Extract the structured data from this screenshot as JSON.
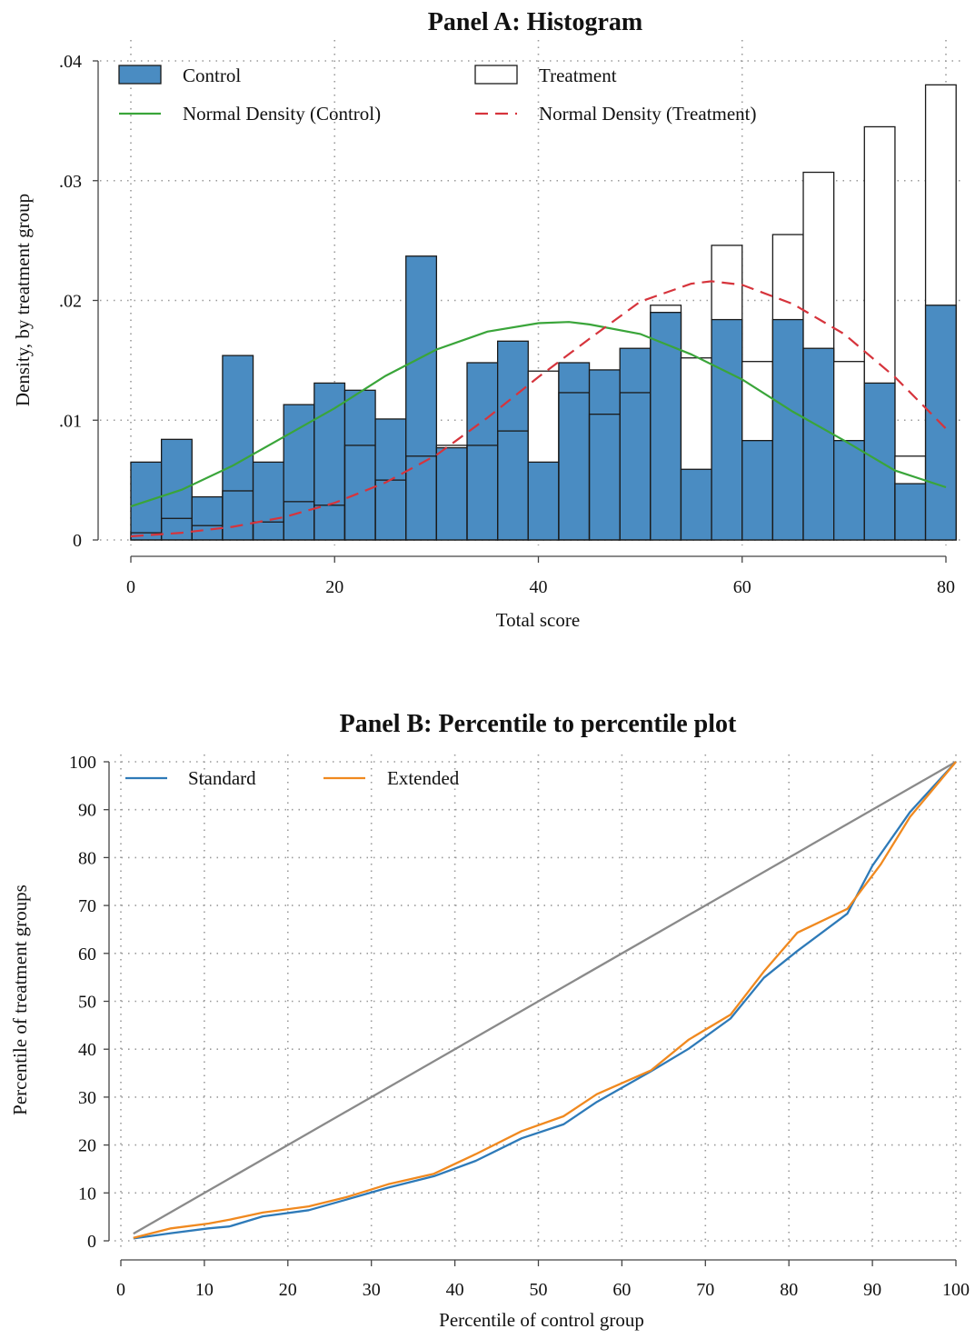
{
  "chart_data": [
    {
      "type": "bar",
      "title": "Panel A: Histogram",
      "xlabel": "Total score",
      "ylabel": "Density, by treatment group",
      "xlim": [
        0,
        81
      ],
      "ylim": [
        0,
        0.04
      ],
      "xticks": [
        0,
        20,
        40,
        60,
        80
      ],
      "xtick_labels": [
        "0",
        "20",
        "40",
        "60",
        "80"
      ],
      "yticks": [
        0,
        0.01,
        0.02,
        0.03,
        0.04
      ],
      "ytick_labels": [
        "0",
        ".01",
        ".02",
        ".03",
        ".04"
      ],
      "grid": true,
      "legend_position": "top",
      "bin_width": 3,
      "bin_starts": [
        0,
        3,
        6,
        9,
        12,
        15,
        18,
        21,
        24,
        27,
        30,
        33,
        36,
        39,
        42,
        45,
        48,
        51,
        54,
        57,
        60,
        63,
        66,
        69,
        72,
        75,
        78
      ],
      "series": [
        {
          "name": "Control",
          "kind": "histogram",
          "color": "#4a8cc2",
          "values": [
            0.0065,
            0.0084,
            0.0036,
            0.0154,
            0.0065,
            0.0113,
            0.0131,
            0.0125,
            0.0101,
            0.0237,
            0.0077,
            0.0148,
            0.0166,
            0.0065,
            0.0148,
            0.0142,
            0.016,
            0.019,
            0.0059,
            0.0184,
            0.0083,
            0.0184,
            0.016,
            0.0083,
            0.0131,
            0.0047,
            0.0196
          ]
        },
        {
          "name": "Treatment",
          "kind": "histogram",
          "color": "#ffffff",
          "values": [
            0.0006,
            0.0018,
            0.0012,
            0.0041,
            0.0015,
            0.0032,
            0.0029,
            0.0079,
            0.005,
            0.007,
            0.0079,
            0.0079,
            0.0091,
            0.0141,
            0.0123,
            0.0105,
            0.0123,
            0.0196,
            0.0152,
            0.0246,
            0.0149,
            0.0255,
            0.0307,
            0.0149,
            0.0345,
            0.007,
            0.038
          ]
        },
        {
          "name": "Normal Density (Control)",
          "kind": "line",
          "color": "#3aa53a",
          "x": [
            0,
            5,
            10,
            15,
            20,
            25,
            30,
            35,
            40,
            43,
            45,
            50,
            55,
            60,
            65,
            70,
            75,
            80
          ],
          "values": [
            0.0028,
            0.0042,
            0.0062,
            0.0086,
            0.011,
            0.0137,
            0.0159,
            0.0174,
            0.0181,
            0.0182,
            0.018,
            0.0172,
            0.0155,
            0.0134,
            0.0107,
            0.0083,
            0.0058,
            0.0044
          ]
        },
        {
          "name": "Normal Density (Treatment)",
          "kind": "line",
          "dashed": true,
          "color": "#d6343c",
          "x": [
            0,
            5,
            10,
            15,
            20,
            25,
            30,
            35,
            40,
            45,
            50,
            55,
            57,
            60,
            65,
            70,
            75,
            80
          ],
          "values": [
            0.0003,
            0.0006,
            0.0011,
            0.0019,
            0.0031,
            0.0048,
            0.0071,
            0.0102,
            0.0136,
            0.0168,
            0.0199,
            0.0214,
            0.0216,
            0.0213,
            0.0197,
            0.0172,
            0.0136,
            0.0093
          ]
        }
      ]
    },
    {
      "type": "line",
      "title": "Panel B: Percentile to percentile plot",
      "xlabel": "Percentile of control group",
      "ylabel": "Percentile of treatment groups",
      "xlim": [
        0,
        100
      ],
      "ylim": [
        0,
        100
      ],
      "xticks": [
        0,
        10,
        20,
        30,
        40,
        50,
        60,
        70,
        80,
        90,
        100
      ],
      "yticks": [
        0,
        10,
        20,
        30,
        40,
        50,
        60,
        70,
        80,
        90,
        100
      ],
      "grid": true,
      "legend_position": "top-left",
      "series": [
        {
          "name": "Standard",
          "color": "#2e7ab8",
          "x": [
            1.5,
            6,
            10.5,
            13,
            17,
            22.5,
            27,
            32,
            37.5,
            42.5,
            48,
            53,
            57,
            63.5,
            68,
            73,
            77,
            81,
            87,
            90,
            94.5,
            100
          ],
          "values": [
            0.5,
            1.6,
            2.6,
            3.0,
            5.1,
            6.4,
            8.6,
            11.1,
            13.5,
            16.7,
            21.4,
            24.3,
            29.0,
            35.4,
            40.1,
            46.4,
            54.9,
            60.5,
            68.3,
            78.3,
            89.5,
            100
          ]
        },
        {
          "name": "Extended",
          "color": "#f0891f",
          "x": [
            1.5,
            6,
            10.5,
            13,
            17,
            22.5,
            27,
            32,
            37.5,
            42.5,
            48,
            53,
            57,
            63.5,
            68,
            73,
            77,
            81,
            87,
            91,
            94.5,
            100
          ],
          "values": [
            0.6,
            2.6,
            3.6,
            4.4,
            5.9,
            7.2,
            9.1,
            11.8,
            14.0,
            18.1,
            22.9,
            26.0,
            30.6,
            35.6,
            42.0,
            47.2,
            56.2,
            64.3,
            69.3,
            78.6,
            88.5,
            100
          ]
        },
        {
          "name": "",
          "color": "#8a8a8a",
          "x": [
            1.5,
            100
          ],
          "values": [
            1.5,
            100
          ]
        }
      ]
    }
  ]
}
